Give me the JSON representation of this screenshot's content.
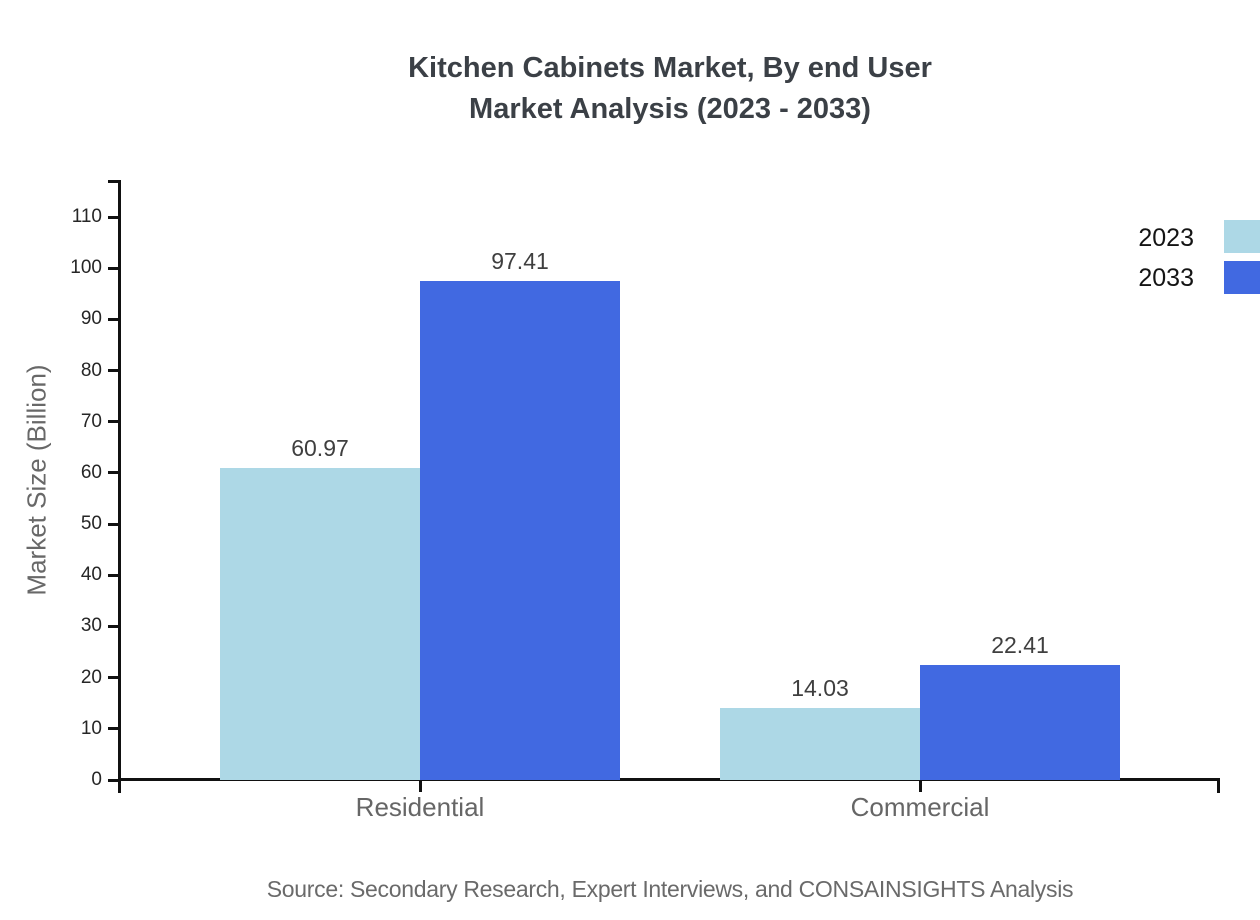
{
  "title": {
    "line1": "Kitchen Cabinets Market, By end User",
    "line2": "Market Analysis (2023 - 2033)"
  },
  "source": "Source: Secondary Research, Expert Interviews, and CONSAINSIGHTS Analysis",
  "chart_data": {
    "type": "bar",
    "categories": [
      "Residential",
      "Commercial"
    ],
    "series": [
      {
        "name": "2023",
        "color": "#ADD8E6",
        "values": [
          60.97,
          14.03
        ]
      },
      {
        "name": "2033",
        "color": "#4169E1",
        "values": [
          97.41,
          22.41
        ]
      }
    ],
    "value_labels": [
      "60.97",
      "97.41",
      "14.03",
      "22.41"
    ],
    "title": "Kitchen Cabinets Market, By end User Market Analysis (2023 - 2033)",
    "xlabel": "",
    "ylabel": "Market Size (Billion)",
    "ylim": [
      0,
      115
    ],
    "yticks": [
      0,
      10,
      20,
      30,
      40,
      50,
      60,
      70,
      80,
      90,
      100,
      110
    ],
    "grid": false,
    "legend_position": "top-right",
    "axis_color": "#111111"
  }
}
